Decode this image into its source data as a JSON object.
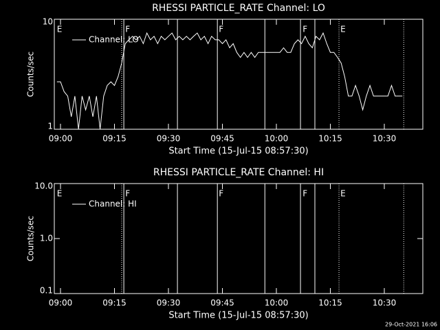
{
  "chart_data": [
    {
      "type": "line",
      "title": "RHESSI PARTICLE_RATE Channel: LO",
      "xlabel": "Start Time (15-Jul-15 08:57:30)",
      "ylabel": "Counts/sec",
      "log_y": true,
      "ylim": [
        1,
        10
      ],
      "yticks": [
        1,
        10
      ],
      "xlim": [
        538.28,
        640.7
      ],
      "xticks": [
        {
          "value": 540,
          "label": "09:00"
        },
        {
          "value": 555,
          "label": "09:15"
        },
        {
          "value": 570,
          "label": "09:30"
        },
        {
          "value": 585,
          "label": "09:45"
        },
        {
          "value": 600,
          "label": "10:00"
        },
        {
          "value": 615,
          "label": "10:15"
        },
        {
          "value": 630,
          "label": "10:30"
        }
      ],
      "legend": "upper left",
      "vlines_solid": [
        557.6,
        572.5,
        583.6,
        596.8,
        606.7,
        610.7
      ],
      "vlines_dotted": [
        557.0,
        617.4,
        635.4
      ],
      "annotations": [
        {
          "text": "E",
          "x": 539.0
        },
        {
          "text": "F",
          "x": 558.0
        },
        {
          "text": "F",
          "x": 584.0
        },
        {
          "text": "F",
          "x": 607.3
        },
        {
          "text": "E",
          "x": 617.8
        }
      ],
      "series": [
        {
          "name": "Channel: LO",
          "color": "#ffffff",
          "x": [
            539,
            540,
            541,
            542,
            543,
            544,
            545,
            546,
            547,
            548,
            549,
            550,
            551,
            552,
            553,
            554,
            555,
            556,
            557,
            558,
            559,
            560,
            561,
            562,
            563,
            564,
            565,
            566,
            567,
            568,
            569,
            570,
            571,
            572,
            573,
            574,
            575,
            576,
            577,
            578,
            579,
            580,
            581,
            582,
            583,
            584,
            585,
            586,
            587,
            588,
            589,
            590,
            591,
            592,
            593,
            594,
            595,
            596,
            597,
            598,
            599,
            600,
            601,
            602,
            603,
            604,
            605,
            606,
            607,
            608,
            609,
            610,
            611,
            612,
            613,
            614,
            615,
            616,
            617,
            618,
            619,
            620,
            621,
            622,
            623,
            624,
            625,
            626,
            627,
            628,
            629,
            630,
            631,
            632,
            633,
            634,
            635
          ],
          "values": [
            2.7,
            2.7,
            2.2,
            2,
            1.3,
            2,
            1,
            2,
            1.5,
            2,
            1.3,
            2,
            1,
            2,
            2.5,
            2.7,
            2.5,
            3,
            4,
            6,
            6.5,
            7,
            6.5,
            7,
            6,
            7.5,
            6.5,
            7,
            6,
            7,
            6.5,
            7,
            7.5,
            6.5,
            7,
            6.5,
            7,
            6.5,
            7,
            7.5,
            6.5,
            7,
            6,
            7,
            6.5,
            6.5,
            6,
            6.5,
            5.5,
            6,
            5,
            4.5,
            5,
            4.5,
            5,
            4.5,
            5,
            5,
            5,
            5,
            5,
            5,
            5,
            5.5,
            5,
            5,
            6,
            6.5,
            6,
            7,
            6,
            5.5,
            7,
            6.5,
            7.5,
            6,
            5,
            5,
            4.5,
            4,
            3,
            2,
            2,
            2.5,
            2,
            1.5,
            2,
            2.5,
            2,
            2,
            2,
            2,
            2,
            2.5,
            2,
            2,
            2
          ]
        }
      ]
    },
    {
      "type": "line",
      "title": "RHESSI PARTICLE_RATE Channel: HI",
      "xlabel": "Start Time (15-Jul-15 08:57:30)",
      "ylabel": "Counts/sec",
      "log_y": true,
      "ylim": [
        0.1,
        10
      ],
      "yticks": [
        {
          "value": 0.1,
          "label": "0.1"
        },
        {
          "value": 1,
          "label": "1.0"
        },
        {
          "value": 10,
          "label": "10.0"
        }
      ],
      "xlim": [
        538.28,
        640.7
      ],
      "xticks": [
        {
          "value": 540,
          "label": "09:00"
        },
        {
          "value": 555,
          "label": "09:15"
        },
        {
          "value": 570,
          "label": "09:30"
        },
        {
          "value": 585,
          "label": "09:45"
        },
        {
          "value": 600,
          "label": "10:00"
        },
        {
          "value": 615,
          "label": "10:15"
        },
        {
          "value": 630,
          "label": "10:30"
        }
      ],
      "legend": "upper left",
      "vlines_solid": [
        557.6,
        572.5,
        583.6,
        596.8,
        606.7,
        610.7
      ],
      "vlines_dotted": [
        557.0,
        617.4,
        635.4
      ],
      "annotations": [
        {
          "text": "E",
          "x": 539.0
        },
        {
          "text": "F",
          "x": 558.0
        },
        {
          "text": "F",
          "x": 584.0
        },
        {
          "text": "F",
          "x": 607.3
        },
        {
          "text": "E",
          "x": 617.8
        }
      ],
      "series": [
        {
          "name": "Channel: HI",
          "color": "#ffffff",
          "x": [],
          "values": []
        }
      ]
    }
  ],
  "footer": "29-Oct-2021 16:06"
}
